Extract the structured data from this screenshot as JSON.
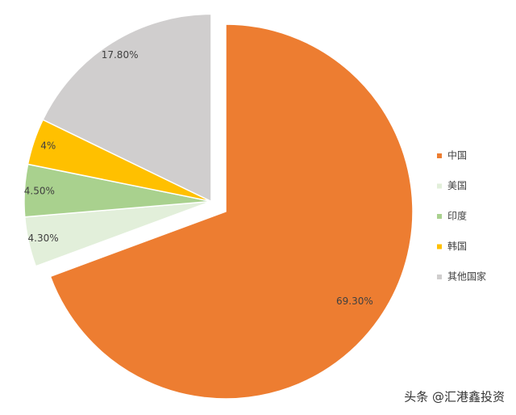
{
  "chart_data": {
    "type": "pie",
    "categories": [
      "中国",
      "美国",
      "印度",
      "韩国",
      "其他国家"
    ],
    "values": [
      69.3,
      4.3,
      4.5,
      4,
      17.8
    ],
    "value_labels": [
      "69.30%",
      "4.30%",
      "4.50%",
      "4%",
      "17.80%"
    ],
    "colors": [
      "#ed7d31",
      "#e2efda",
      "#a9d18e",
      "#ffc000",
      "#d0cece"
    ],
    "legend": "right"
  },
  "watermark": "头条 @汇港鑫投资"
}
